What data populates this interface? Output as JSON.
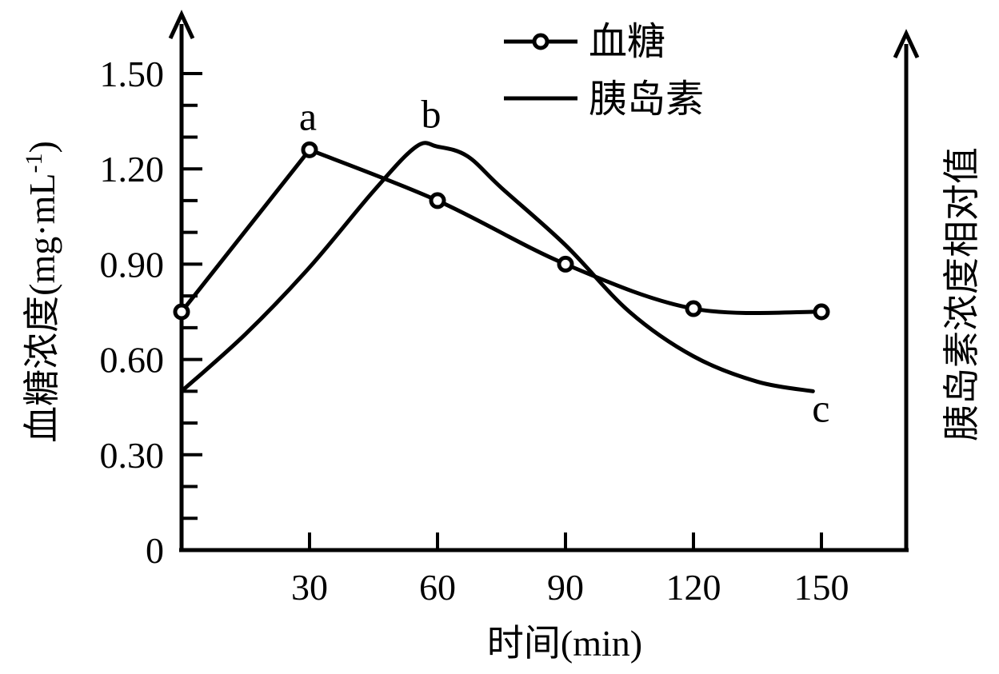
{
  "chart_data": {
    "type": "line",
    "xlabel": "时间(min)",
    "ylabel_left": "血糖浓度(mg·mL",
    "ylabel_left_sup": "-1",
    "ylabel_left_close": ")",
    "ylabel_right": "胰岛素浓度相对值",
    "x_ticks": [
      30,
      60,
      90,
      120,
      150
    ],
    "x_tick_labels": [
      "30",
      "60",
      "90",
      "120",
      "150"
    ],
    "y_ticks": [
      0,
      0.3,
      0.6,
      0.9,
      1.2,
      1.5
    ],
    "y_tick_labels": [
      "0",
      "0.30",
      "0.60",
      "0.90",
      "1.20",
      "1.50"
    ],
    "xlim": [
      0,
      170
    ],
    "ylim": [
      0,
      1.65
    ],
    "series": [
      {
        "name": "血糖",
        "marker": "circle",
        "color": "#000000",
        "x": [
          0,
          30,
          60,
          90,
          120,
          150
        ],
        "y": [
          0.75,
          1.26,
          1.1,
          0.9,
          0.76,
          0.75
        ]
      },
      {
        "name": "胰岛素",
        "marker": "none",
        "color": "#000000",
        "x": [
          0,
          15,
          30,
          45,
          55,
          60,
          67,
          75,
          90,
          105,
          120,
          135,
          148
        ],
        "y": [
          0.5,
          0.68,
          0.89,
          1.13,
          1.27,
          1.27,
          1.24,
          1.14,
          0.96,
          0.75,
          0.61,
          0.53,
          0.5
        ]
      }
    ],
    "annotations": [
      {
        "text": "a",
        "x": 30,
        "y": 1.26
      },
      {
        "text": "b",
        "x": 57,
        "y": 1.28
      },
      {
        "text": "c",
        "x": 148,
        "y": 0.5
      }
    ],
    "legend": {
      "position": "top-right",
      "entries": [
        "血糖",
        "胰岛素"
      ]
    },
    "grid": false
  }
}
